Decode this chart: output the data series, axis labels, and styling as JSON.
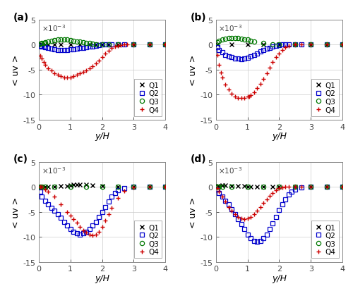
{
  "title_fontsize": 10,
  "axis_label_fontsize": 9,
  "tick_fontsize": 8,
  "legend_fontsize": 7.5,
  "xlim": [
    0,
    4
  ],
  "ylim": [
    -0.015,
    0.005
  ],
  "yticks": [
    -0.015,
    -0.01,
    -0.005,
    0.0,
    0.005
  ],
  "xticks": [
    0,
    1,
    2,
    3,
    4
  ],
  "xlabel": "y/H",
  "ylabel": "< uv >",
  "panels": [
    "(a)",
    "(b)",
    "(c)",
    "(d)"
  ],
  "colors": {
    "Q1": "#000000",
    "Q2": "#0000cc",
    "Q3": "#007700",
    "Q4": "#cc0000"
  },
  "subplot_data": {
    "a": {
      "Q1": {
        "x": [
          0.05,
          0.1,
          0.2,
          0.3,
          0.5,
          0.7,
          1.0,
          1.3,
          1.6,
          1.8,
          2.0,
          2.2,
          2.5,
          3.0,
          3.5,
          4.0
        ],
        "y": [
          0.0,
          0.0,
          0.0,
          0.0,
          0.0,
          0.0,
          0.0,
          0.0,
          0.0,
          0.0,
          0.0,
          0.0,
          0.0,
          0.0,
          0.0,
          0.0
        ]
      },
      "Q2": {
        "x": [
          0.05,
          0.1,
          0.15,
          0.2,
          0.3,
          0.4,
          0.5,
          0.6,
          0.7,
          0.8,
          0.9,
          1.0,
          1.1,
          1.2,
          1.3,
          1.4,
          1.5,
          1.6,
          1.7,
          1.8,
          1.9,
          2.0,
          2.1,
          2.2,
          2.3,
          2.5,
          2.7,
          3.0,
          3.5,
          4.0
        ],
        "y": [
          -0.0002,
          -0.0003,
          -0.0004,
          -0.0005,
          -0.0007,
          -0.0008,
          -0.0009,
          -0.001,
          -0.001,
          -0.001,
          -0.001,
          -0.0009,
          -0.0009,
          -0.0008,
          -0.0007,
          -0.0006,
          -0.0005,
          -0.0004,
          -0.0003,
          -0.0002,
          -0.0001,
          0.0,
          0.0,
          0.0,
          0.0,
          0.0,
          0.0,
          0.0,
          0.0,
          0.0
        ]
      },
      "Q3": {
        "x": [
          0.05,
          0.1,
          0.15,
          0.2,
          0.3,
          0.4,
          0.5,
          0.6,
          0.7,
          0.8,
          0.9,
          1.0,
          1.1,
          1.2,
          1.3,
          1.4,
          1.5,
          1.6,
          1.7,
          1.8,
          2.0,
          2.2,
          2.5,
          3.0,
          3.5,
          4.0
        ],
        "y": [
          0.0002,
          0.0003,
          0.0004,
          0.0005,
          0.0007,
          0.0008,
          0.0009,
          0.001,
          0.001,
          0.001,
          0.001,
          0.0009,
          0.0008,
          0.0007,
          0.0006,
          0.0005,
          0.0004,
          0.0003,
          0.0002,
          0.0001,
          0.0,
          0.0,
          0.0,
          0.0,
          0.0,
          0.0
        ]
      },
      "Q4": {
        "x": [
          0.05,
          0.1,
          0.15,
          0.2,
          0.3,
          0.4,
          0.5,
          0.6,
          0.7,
          0.8,
          0.9,
          1.0,
          1.1,
          1.2,
          1.3,
          1.4,
          1.5,
          1.6,
          1.7,
          1.8,
          1.9,
          2.0,
          2.1,
          2.2,
          2.3,
          2.4,
          2.5,
          2.6,
          2.7,
          2.8,
          3.0,
          3.5,
          4.0
        ],
        "y": [
          -0.0022,
          -0.0028,
          -0.0035,
          -0.004,
          -0.0047,
          -0.0052,
          -0.0057,
          -0.006,
          -0.0063,
          -0.0065,
          -0.0066,
          -0.0065,
          -0.0063,
          -0.006,
          -0.0057,
          -0.0054,
          -0.0051,
          -0.0047,
          -0.0043,
          -0.0038,
          -0.0032,
          -0.0025,
          -0.0018,
          -0.0012,
          -0.0007,
          -0.0004,
          -0.0002,
          -0.0001,
          0.0,
          0.0,
          0.0,
          0.0,
          0.0
        ]
      }
    },
    "b": {
      "Q1": {
        "x": [
          0.05,
          0.5,
          1.0,
          1.5,
          2.0,
          2.5,
          3.0,
          3.5,
          4.0
        ],
        "y": [
          0.0,
          0.0,
          0.0,
          0.0,
          0.0,
          0.0,
          0.0,
          0.0,
          0.0
        ]
      },
      "Q2": {
        "x": [
          0.05,
          0.1,
          0.2,
          0.3,
          0.4,
          0.5,
          0.6,
          0.7,
          0.8,
          0.9,
          1.0,
          1.1,
          1.2,
          1.3,
          1.4,
          1.5,
          1.6,
          1.7,
          1.8,
          1.9,
          2.0,
          2.1,
          2.2,
          2.3,
          2.5,
          2.7,
          3.0,
          3.5,
          4.0
        ],
        "y": [
          -0.0005,
          -0.001,
          -0.0015,
          -0.002,
          -0.0023,
          -0.0025,
          -0.0027,
          -0.0028,
          -0.0029,
          -0.0028,
          -0.0026,
          -0.0023,
          -0.002,
          -0.0017,
          -0.0014,
          -0.0011,
          -0.0008,
          -0.0006,
          -0.0004,
          -0.0002,
          -0.0001,
          0.0,
          0.0,
          0.0,
          0.0,
          0.0,
          0.0,
          0.0,
          0.0
        ]
      },
      "Q3": {
        "x": [
          0.05,
          0.1,
          0.2,
          0.3,
          0.4,
          0.5,
          0.6,
          0.7,
          0.8,
          0.9,
          1.0,
          1.1,
          1.2,
          1.5,
          1.8,
          2.0,
          2.5,
          3.0,
          3.5,
          4.0
        ],
        "y": [
          0.0005,
          0.0008,
          0.001,
          0.0012,
          0.0013,
          0.0014,
          0.0014,
          0.0013,
          0.0012,
          0.0011,
          0.001,
          0.0008,
          0.0006,
          0.0003,
          0.0001,
          0.0,
          0.0,
          0.0,
          0.0,
          0.0
        ]
      },
      "Q4": {
        "x": [
          0.05,
          0.1,
          0.15,
          0.2,
          0.3,
          0.4,
          0.5,
          0.6,
          0.7,
          0.8,
          0.9,
          1.0,
          1.05,
          1.1,
          1.2,
          1.3,
          1.4,
          1.5,
          1.6,
          1.7,
          1.8,
          1.9,
          2.0,
          2.1,
          2.2,
          2.3,
          2.5,
          2.7,
          3.0,
          3.5,
          4.0
        ],
        "y": [
          -0.002,
          -0.004,
          -0.0055,
          -0.0065,
          -0.008,
          -0.009,
          -0.0098,
          -0.0103,
          -0.0106,
          -0.0107,
          -0.0106,
          -0.0104,
          -0.0103,
          -0.0101,
          -0.0095,
          -0.0087,
          -0.0078,
          -0.0068,
          -0.0057,
          -0.0046,
          -0.0035,
          -0.0025,
          -0.0017,
          -0.001,
          -0.0005,
          -0.0002,
          0.0,
          0.0,
          0.0,
          0.0,
          0.0
        ]
      }
    },
    "c": {
      "Q1": {
        "x": [
          0.05,
          0.1,
          0.2,
          0.3,
          0.5,
          0.7,
          0.9,
          1.0,
          1.1,
          1.2,
          1.3,
          1.5,
          1.7,
          2.0,
          2.5,
          3.0,
          3.5,
          4.0
        ],
        "y": [
          0.0,
          0.0,
          0.0,
          0.0,
          0.0,
          0.0001,
          0.0002,
          0.0003,
          0.0004,
          0.0005,
          0.0005,
          0.0004,
          0.0003,
          0.0001,
          0.0,
          0.0,
          0.0,
          0.0
        ]
      },
      "Q2": {
        "x": [
          0.05,
          0.1,
          0.2,
          0.3,
          0.4,
          0.5,
          0.6,
          0.7,
          0.8,
          0.9,
          1.0,
          1.1,
          1.2,
          1.3,
          1.4,
          1.5,
          1.6,
          1.7,
          1.8,
          1.9,
          2.0,
          2.1,
          2.2,
          2.3,
          2.4,
          2.5,
          2.7,
          3.0,
          3.5,
          4.0
        ],
        "y": [
          -0.001,
          -0.002,
          -0.0028,
          -0.0035,
          -0.0042,
          -0.0048,
          -0.0055,
          -0.0062,
          -0.007,
          -0.0078,
          -0.0085,
          -0.009,
          -0.0093,
          -0.0095,
          -0.0093,
          -0.009,
          -0.0085,
          -0.0078,
          -0.007,
          -0.006,
          -0.005,
          -0.004,
          -0.003,
          -0.002,
          -0.0013,
          -0.0007,
          -0.0002,
          0.0,
          0.0,
          0.0
        ]
      },
      "Q3": {
        "x": [
          0.05,
          0.1,
          0.2,
          0.5,
          1.0,
          1.5,
          2.0,
          2.5,
          3.0,
          3.5,
          4.0
        ],
        "y": [
          0.0,
          0.0,
          0.0,
          0.0,
          0.0,
          0.0,
          0.0,
          0.0,
          0.0,
          0.0,
          0.0
        ]
      },
      "Q4": {
        "x": [
          0.05,
          0.1,
          0.2,
          0.3,
          0.5,
          0.7,
          0.9,
          1.0,
          1.1,
          1.2,
          1.3,
          1.4,
          1.5,
          1.6,
          1.7,
          1.8,
          1.9,
          2.0,
          2.1,
          2.2,
          2.3,
          2.5,
          2.7,
          3.0,
          3.5,
          4.0
        ],
        "y": [
          0.0,
          0.0,
          -0.0005,
          -0.001,
          -0.002,
          -0.0035,
          -0.005,
          -0.0058,
          -0.0065,
          -0.0072,
          -0.008,
          -0.0087,
          -0.0092,
          -0.0095,
          -0.0097,
          -0.0095,
          -0.009,
          -0.008,
          -0.0068,
          -0.0055,
          -0.0042,
          -0.0022,
          -0.0008,
          -0.0001,
          0.0,
          0.0
        ]
      }
    },
    "d": {
      "Q1": {
        "x": [
          0.05,
          0.1,
          0.2,
          0.3,
          0.5,
          0.7,
          0.9,
          1.0,
          1.1,
          1.3,
          1.5,
          1.8,
          2.0,
          2.5,
          3.0,
          3.5,
          4.0
        ],
        "y": [
          0.0001,
          0.0002,
          0.0003,
          0.0003,
          0.0002,
          0.0001,
          0.0001,
          0.0,
          0.0,
          0.0,
          0.0,
          0.0,
          0.0,
          0.0,
          0.0,
          0.0,
          0.0
        ]
      },
      "Q2": {
        "x": [
          0.05,
          0.1,
          0.2,
          0.3,
          0.4,
          0.5,
          0.6,
          0.7,
          0.8,
          0.9,
          1.0,
          1.1,
          1.2,
          1.3,
          1.4,
          1.5,
          1.6,
          1.7,
          1.8,
          1.9,
          2.0,
          2.1,
          2.2,
          2.3,
          2.4,
          2.5,
          2.7,
          3.0,
          3.5,
          4.0
        ],
        "y": [
          -0.0005,
          -0.0012,
          -0.002,
          -0.0028,
          -0.0035,
          -0.0045,
          -0.0055,
          -0.0065,
          -0.0075,
          -0.0085,
          -0.0095,
          -0.0103,
          -0.0108,
          -0.011,
          -0.0108,
          -0.0103,
          -0.0095,
          -0.0085,
          -0.0073,
          -0.006,
          -0.0047,
          -0.0035,
          -0.0025,
          -0.0016,
          -0.001,
          -0.0005,
          -0.0001,
          0.0,
          0.0,
          0.0
        ]
      },
      "Q3": {
        "x": [
          0.05,
          0.1,
          0.2,
          0.5,
          1.0,
          1.5,
          2.0,
          2.5,
          3.0,
          3.5,
          4.0
        ],
        "y": [
          0.0,
          0.0,
          0.0,
          0.0,
          0.0,
          0.0,
          0.0,
          0.0,
          0.0,
          0.0,
          0.0
        ]
      },
      "Q4": {
        "x": [
          0.05,
          0.1,
          0.2,
          0.3,
          0.4,
          0.5,
          0.6,
          0.7,
          0.8,
          0.9,
          1.0,
          1.1,
          1.2,
          1.3,
          1.4,
          1.5,
          1.6,
          1.7,
          1.8,
          1.9,
          2.0,
          2.1,
          2.2,
          2.3,
          2.5,
          2.7,
          3.0,
          3.5,
          4.0
        ],
        "y": [
          -0.0003,
          -0.001,
          -0.002,
          -0.003,
          -0.004,
          -0.0048,
          -0.0055,
          -0.006,
          -0.0063,
          -0.0064,
          -0.0063,
          -0.006,
          -0.0055,
          -0.0048,
          -0.004,
          -0.0032,
          -0.0025,
          -0.0018,
          -0.0012,
          -0.0007,
          -0.0003,
          -0.0001,
          0.0,
          0.0,
          0.0,
          0.0,
          0.0,
          0.0,
          0.0
        ]
      }
    }
  }
}
